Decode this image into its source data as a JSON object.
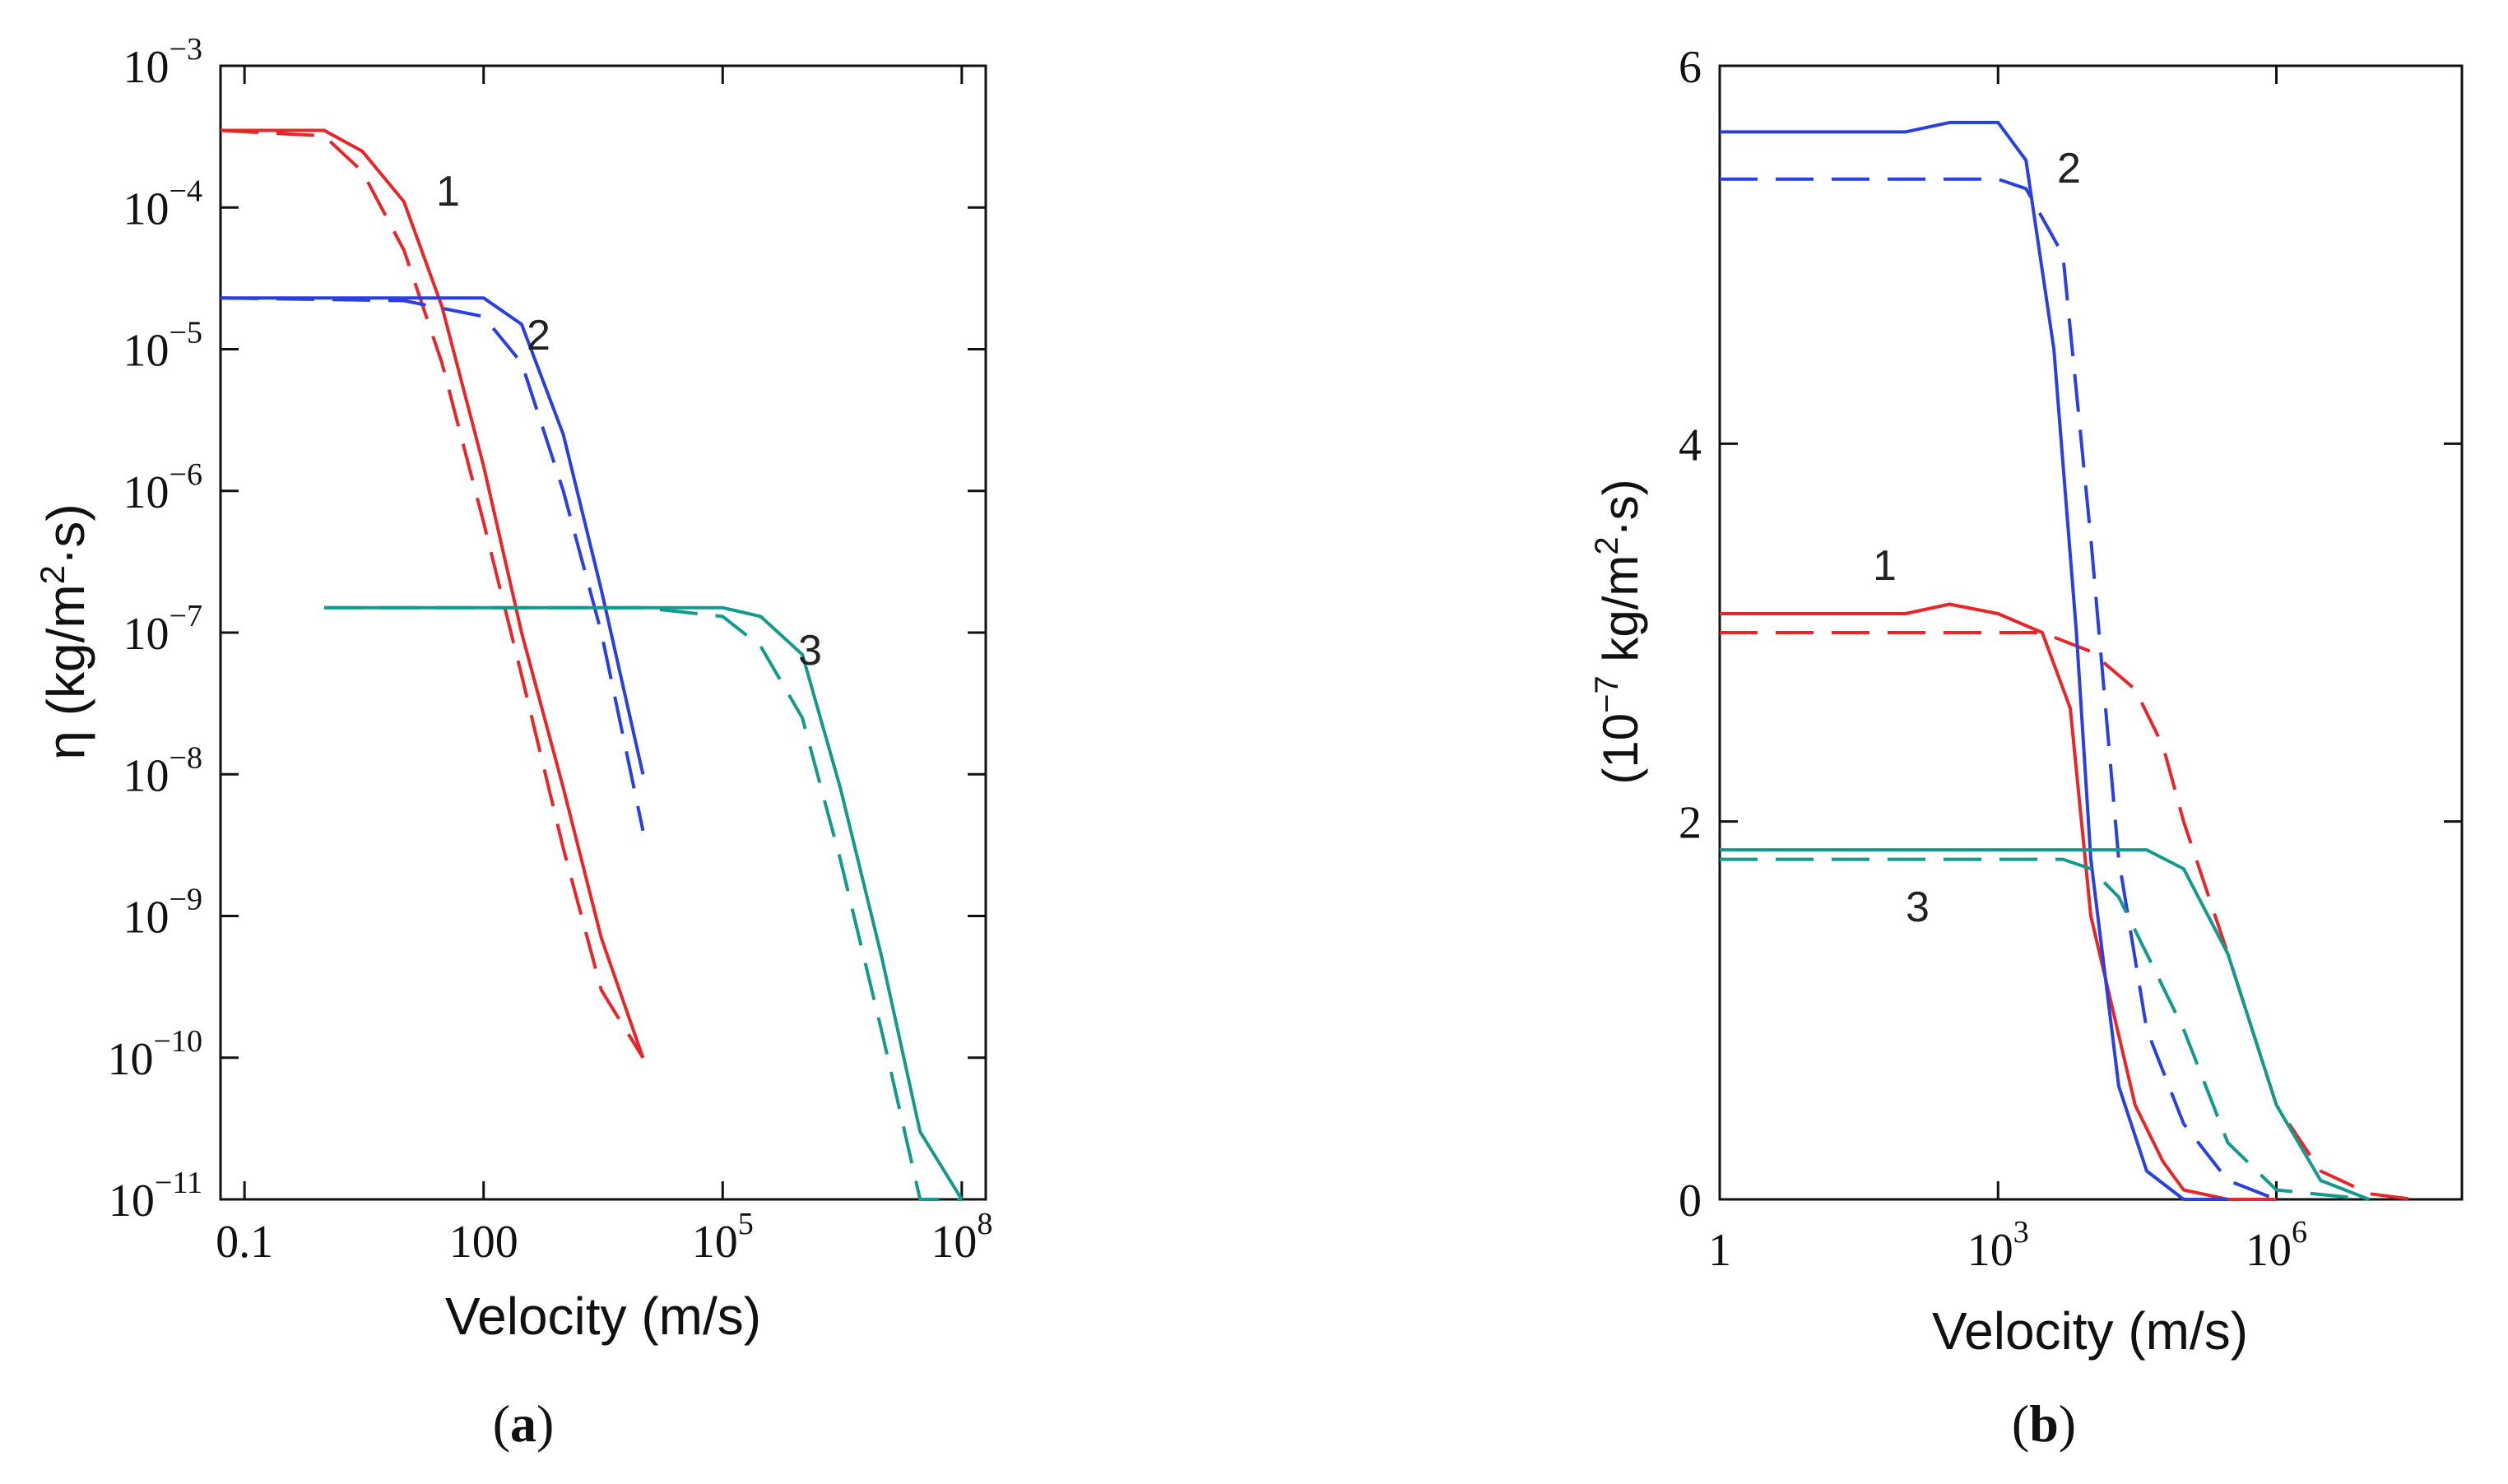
{
  "panels": {
    "a": {
      "label_open": "(",
      "label_letter": "a",
      "label_close": ")"
    },
    "b": {
      "label_open": "(",
      "label_letter": "b",
      "label_close": ")"
    }
  },
  "chart_data": [
    {
      "type": "line",
      "panel": "a",
      "xlabel": "Velocity (m/s)",
      "ylabel_symbol": "η",
      "ylabel_units": "(kg/m",
      "ylabel_units_sup": "2",
      "ylabel_units_tail": "·s)",
      "x_scale": "log",
      "y_scale": "log",
      "xlim": [
        0.05,
        200000000
      ],
      "ylim": [
        1e-11,
        0.001
      ],
      "x_tick_labels": [
        {
          "value": 0.1,
          "text": "0.1"
        },
        {
          "value": 100,
          "text": "100"
        },
        {
          "value": 100000,
          "base": "10",
          "exp": "5"
        },
        {
          "value": 100000000,
          "base": "10",
          "exp": "8"
        }
      ],
      "y_tick_labels": [
        {
          "value": 0.001,
          "base": "10",
          "exp": "−3"
        },
        {
          "value": 0.0001,
          "base": "10",
          "exp": "−4"
        },
        {
          "value": 1e-05,
          "base": "10",
          "exp": "−5"
        },
        {
          "value": 1e-06,
          "base": "10",
          "exp": "−6"
        },
        {
          "value": 1e-07,
          "base": "10",
          "exp": "−7"
        },
        {
          "value": 1e-08,
          "base": "10",
          "exp": "−8"
        },
        {
          "value": 1e-09,
          "base": "10",
          "exp": "−9"
        },
        {
          "value": 1e-10,
          "base": "10",
          "exp": "−10"
        },
        {
          "value": 1e-11,
          "base": "10",
          "exp": "−11"
        }
      ],
      "grid": false,
      "legend": "none",
      "series": [
        {
          "label": "1",
          "color": "#e8262a",
          "dashed": false,
          "x": [
            0.05,
            1,
            3,
            10,
            30,
            100,
            300,
            1000,
            3000,
            10000
          ],
          "y": [
            0.00035,
            0.00035,
            0.00025,
            0.00011,
            2e-05,
            1.5e-06,
            1e-07,
            8e-09,
            7e-10,
            1e-10
          ]
        },
        {
          "label": "1",
          "color": "#e8262a",
          "dashed": true,
          "x": [
            0.05,
            1,
            3,
            10,
            30,
            100,
            300,
            1000,
            3000,
            10000
          ],
          "y": [
            0.00035,
            0.00032,
            0.00018,
            5e-05,
            8e-06,
            6e-07,
            5e-08,
            3e-09,
            3e-10,
            1e-10
          ]
        },
        {
          "label": "2",
          "color": "#2a3fe0",
          "dashed": false,
          "x": [
            0.05,
            10,
            100,
            300,
            1000,
            3000,
            10000
          ],
          "y": [
            2.3e-05,
            2.3e-05,
            2.3e-05,
            1.5e-05,
            2.5e-06,
            2e-07,
            1e-08
          ]
        },
        {
          "label": "2",
          "color": "#2a3fe0",
          "dashed": true,
          "x": [
            0.05,
            10,
            100,
            300,
            1000,
            3000,
            10000
          ],
          "y": [
            2.3e-05,
            2.2e-05,
            1.7e-05,
            8e-06,
            1e-06,
            1e-07,
            4e-09
          ]
        },
        {
          "label": "3",
          "color": "#149a8c",
          "dashed": false,
          "x": [
            1,
            100,
            10000,
            100000,
            300000,
            1000000,
            3000000,
            10000000,
            30000000,
            100000000
          ],
          "y": [
            1.5e-07,
            1.5e-07,
            1.5e-07,
            1.5e-07,
            1.3e-07,
            7e-08,
            8e-09,
            5e-10,
            3e-11,
            1e-11
          ]
        },
        {
          "label": "3",
          "color": "#149a8c",
          "dashed": true,
          "x": [
            1,
            100,
            10000,
            100000,
            300000,
            1000000,
            3000000,
            10000000,
            30000000,
            100000000
          ],
          "y": [
            1.5e-07,
            1.5e-07,
            1.5e-07,
            1.3e-07,
            8e-08,
            2.5e-08,
            2.5e-09,
            1.5e-10,
            1e-11,
            1e-11
          ]
        }
      ]
    },
    {
      "type": "line",
      "panel": "b",
      "xlabel": "Velocity (m/s)",
      "ylabel_open": "(",
      "ylabel_num": "10",
      "ylabel_exp": "−7",
      "ylabel_units": " kg/m",
      "ylabel_units_sup": "2",
      "ylabel_units_tail": "·s)",
      "x_scale": "log",
      "y_scale": "linear",
      "xlim": [
        1,
        100000000
      ],
      "ylim": [
        0,
        6
      ],
      "x_tick_labels": [
        {
          "value": 1,
          "text": "1"
        },
        {
          "value": 1000,
          "base": "10",
          "exp": "3"
        },
        {
          "value": 1000000,
          "base": "10",
          "exp": "6"
        }
      ],
      "y_tick_labels": [
        {
          "value": 0,
          "text": "0"
        },
        {
          "value": 2,
          "text": "2"
        },
        {
          "value": 4,
          "text": "4"
        },
        {
          "value": 6,
          "text": "6"
        }
      ],
      "grid": false,
      "legend": "none",
      "series": [
        {
          "label": "1",
          "color": "#e8262a",
          "dashed": false,
          "x": [
            1,
            100,
            300,
            1000,
            3000,
            6000,
            10000,
            30000,
            60000,
            100000,
            300000,
            1000000
          ],
          "y": [
            3.1,
            3.1,
            3.15,
            3.1,
            3.0,
            2.6,
            1.5,
            0.5,
            0.2,
            0.05,
            0,
            0
          ]
        },
        {
          "label": "1",
          "color": "#e8262a",
          "dashed": true,
          "x": [
            1,
            1000,
            3000,
            10000,
            30000,
            60000,
            100000,
            300000,
            1000000,
            3000000,
            10000000,
            30000000
          ],
          "y": [
            3.0,
            3.0,
            3.0,
            2.9,
            2.7,
            2.4,
            2.0,
            1.3,
            0.5,
            0.15,
            0.03,
            0
          ]
        },
        {
          "label": "2",
          "color": "#2a3fe0",
          "dashed": false,
          "x": [
            1,
            100,
            300,
            1000,
            2000,
            4000,
            7000,
            10000,
            20000,
            40000,
            100000,
            300000
          ],
          "y": [
            5.65,
            5.65,
            5.7,
            5.7,
            5.5,
            4.5,
            3.0,
            1.8,
            0.6,
            0.15,
            0,
            0
          ]
        },
        {
          "label": "2",
          "color": "#2a3fe0",
          "dashed": true,
          "x": [
            1,
            1000,
            2000,
            5000,
            10000,
            20000,
            40000,
            100000,
            300000,
            1000000
          ],
          "y": [
            5.4,
            5.4,
            5.35,
            5.0,
            3.5,
            1.8,
            0.9,
            0.4,
            0.1,
            0
          ]
        },
        {
          "label": "3",
          "color": "#149a8c",
          "dashed": false,
          "x": [
            1,
            10000,
            40000,
            100000,
            300000,
            1000000,
            3000000,
            10000000
          ],
          "y": [
            1.85,
            1.85,
            1.85,
            1.75,
            1.3,
            0.5,
            0.1,
            0
          ]
        },
        {
          "label": "3",
          "color": "#149a8c",
          "dashed": true,
          "x": [
            1,
            5000,
            10000,
            20000,
            40000,
            100000,
            300000,
            1000000,
            10000000
          ],
          "y": [
            1.8,
            1.8,
            1.75,
            1.6,
            1.3,
            0.9,
            0.3,
            0.05,
            0
          ]
        }
      ]
    }
  ]
}
